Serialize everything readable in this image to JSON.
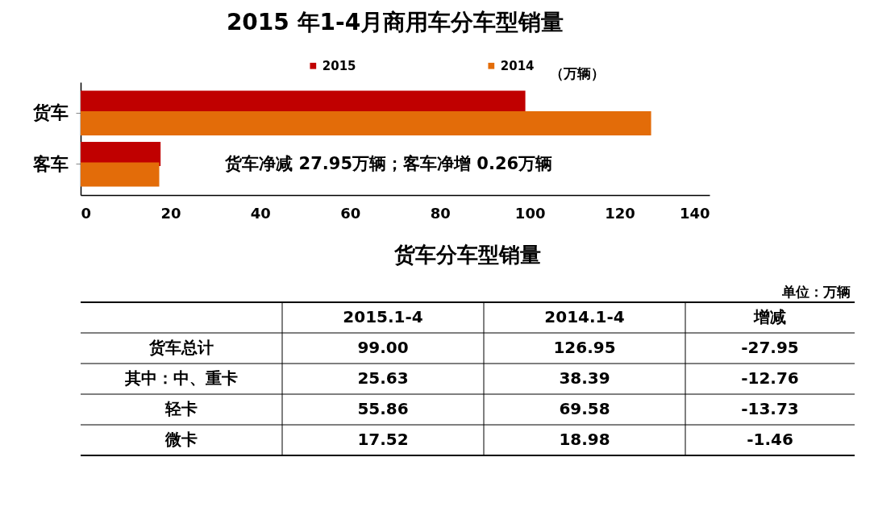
{
  "chart_data": [
    {
      "type": "bar",
      "orientation": "horizontal",
      "title": "2015 年1-4月商用车分车型销量",
      "categories": [
        "货车",
        "客车"
      ],
      "series": [
        {
          "name": "2015",
          "color": "#c00000",
          "values": [
            99,
            17.8
          ]
        },
        {
          "name": "2014",
          "color": "#e36c09",
          "values": [
            127,
            17.5
          ]
        }
      ],
      "xlim": [
        0,
        140
      ],
      "xticks": [
        0,
        20,
        40,
        60,
        80,
        100,
        120,
        140
      ],
      "grid": false,
      "legend": "top",
      "annotations": [
        "（万辆）",
        "货车净减 27.95万辆；客车净增 0.26万辆"
      ]
    },
    {
      "type": "heatmap",
      "title": "货车分车型销量",
      "categories": [
        "2015.1-4",
        "2014.1-4",
        "增减"
      ],
      "y_categories": [
        "货车总计",
        "其中：中、重卡",
        "轻卡",
        "微卡"
      ],
      "cells": [
        [
          99.0,
          126.95,
          -27.95
        ],
        [
          25.63,
          38.39,
          -12.76
        ],
        [
          55.86,
          69.58,
          -13.73
        ],
        [
          17.52,
          18.98,
          -1.46
        ]
      ],
      "cell_labels": [
        [
          "99.00",
          "126.95",
          "-27.95"
        ],
        [
          "25.63",
          "38.39",
          "-12.76"
        ],
        [
          "55.86",
          "69.58",
          "-13.73"
        ],
        [
          "17.52",
          "18.98",
          "-1.46"
        ]
      ],
      "annotations": [
        "单位：万辆"
      ]
    }
  ]
}
